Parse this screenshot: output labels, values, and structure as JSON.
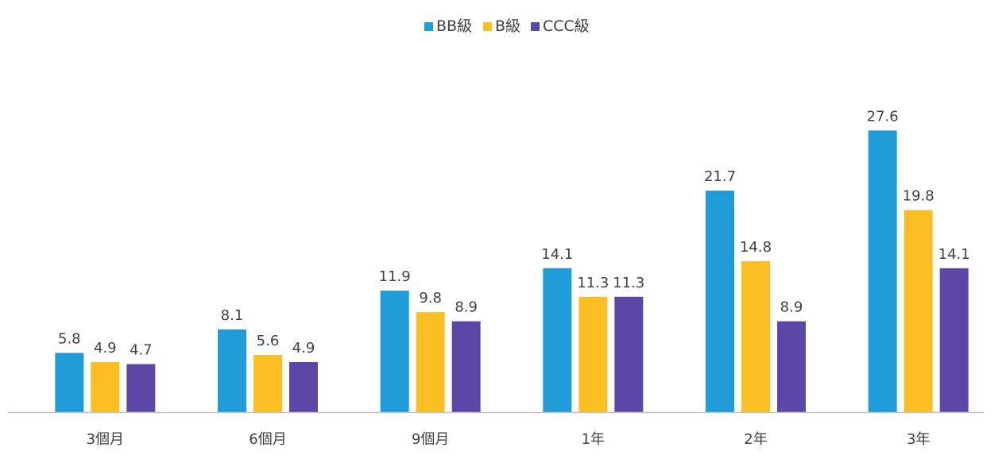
{
  "chart_data": {
    "type": "bar",
    "categories": [
      "3個月",
      "6個月",
      "9個月",
      "1年",
      "2年",
      "3年"
    ],
    "series": [
      {
        "name": "BB級",
        "color": "#1f9bd7",
        "values": [
          5.8,
          8.1,
          11.9,
          14.1,
          21.7,
          27.6
        ]
      },
      {
        "name": "B級",
        "color": "#fbbf24",
        "values": [
          4.9,
          5.6,
          9.8,
          11.3,
          14.8,
          19.8
        ]
      },
      {
        "name": "CCC級",
        "color": "#5b48a6",
        "values": [
          4.7,
          4.9,
          8.9,
          11.3,
          8.9,
          14.1
        ]
      }
    ],
    "ylim": [
      0,
      30
    ],
    "grid": false,
    "legend_position": "top-center",
    "value_labels": true,
    "axis_color": "#bfbfbf",
    "text_color": "#404040"
  }
}
